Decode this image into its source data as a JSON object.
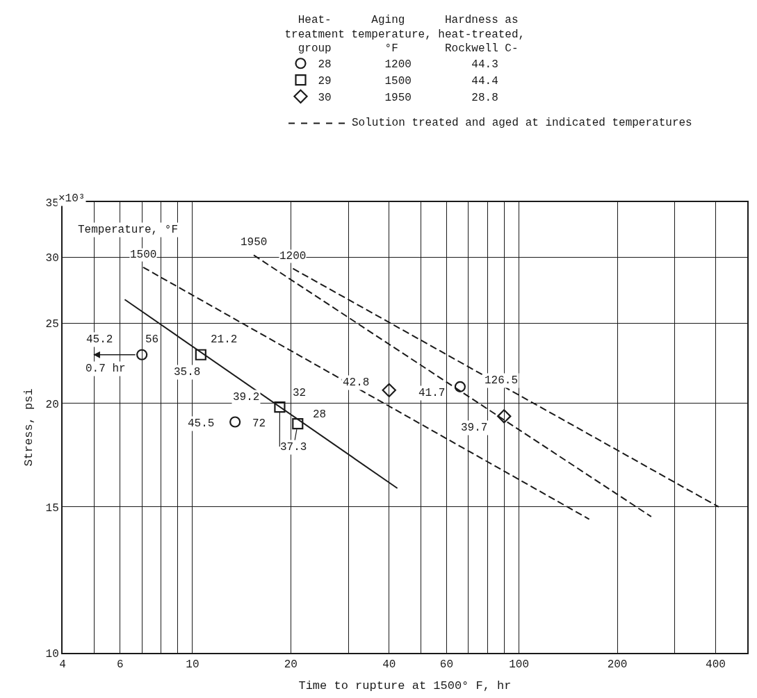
{
  "chart_data": {
    "type": "scatter",
    "xlabel": "Time to rupture at 1500° F, hr",
    "ylabel": "Stress, psi",
    "legend_title": "  Heat-      Aging      Hardness as\ntreatment temperature, heat-treated,\n  group        °F       Rockwell C-",
    "log": "xy",
    "grid": true,
    "legend": "top",
    "xlim": [
      4,
      500
    ],
    "xticks": [
      4,
      {
        "value": 5,
        "label": null
      },
      6,
      {
        "value": 7,
        "label": null
      },
      {
        "value": 8,
        "label": null
      },
      {
        "value": 9,
        "label": null
      },
      10,
      20,
      {
        "value": 30,
        "label": null
      },
      40,
      {
        "value": 50,
        "label": null
      },
      60,
      {
        "value": 70,
        "label": null
      },
      {
        "value": 80,
        "label": null
      },
      {
        "value": 90,
        "label": null
      },
      100,
      200,
      {
        "value": 300,
        "label": null
      },
      400
    ],
    "ylim": [
      10,
      35
    ],
    "yticks": [
      10,
      15,
      20,
      25,
      30,
      35
    ],
    "series": [
      {
        "name": "28        1200         44.3",
        "type": "scatter",
        "marker": "circle",
        "color": "#1a1a1a",
        "x": [
          7.0,
          13.5,
          66
        ],
        "values": [
          22.9,
          19.0,
          20.95
        ]
      },
      {
        "name": "29        1500         44.4",
        "type": "scatter",
        "marker": "square",
        "color": "#1a1a1a",
        "x": [
          10.6,
          18.5,
          21.0
        ],
        "values": [
          22.9,
          19.8,
          18.9
        ]
      },
      {
        "name": "30        1950         28.8",
        "type": "scatter",
        "marker": "diamond",
        "color": "#1a1a1a",
        "x": [
          40,
          90
        ],
        "values": [
          20.75,
          19.3
        ]
      },
      {
        "type": "line",
        "line_style": "solid",
        "color": "#1a1a1a",
        "x": [
          6.2,
          42.4
        ],
        "values": [
          26.7,
          15.8
        ]
      },
      {
        "name": "1500",
        "type": "line",
        "line_style": "dashed",
        "color": "#1a1a1a",
        "x": [
          7.06,
          164
        ],
        "values": [
          29.2,
          14.5
        ]
      },
      {
        "name": "1950",
        "type": "line",
        "line_style": "dashed",
        "color": "#1a1a1a",
        "x": [
          15.4,
          254
        ],
        "values": [
          30.2,
          14.6
        ]
      },
      {
        "name": "1200",
        "type": "line",
        "line_style": "dashed",
        "color": "#1a1a1a",
        "x": [
          20.3,
          409
        ],
        "values": [
          29.1,
          15.0
        ]
      }
    ],
    "annotations": [
      "Temperature, °F",
      "0.7 hr",
      "×10³",
      {
        "text": "45.2",
        "x": 5.19,
        "y": 23.9
      },
      {
        "text": "56",
        "x": 7.52,
        "y": 23.9
      },
      {
        "text": "21.2",
        "x": 12.5,
        "y": 23.9
      },
      {
        "text": "35.8",
        "x": 9.6,
        "y": 21.8
      },
      {
        "text": "39.2",
        "x": 14.6,
        "y": 20.35
      },
      {
        "text": "32",
        "x": 21.2,
        "y": 20.6
      },
      {
        "text": "28",
        "x": 24.5,
        "y": 19.4
      },
      {
        "text": "37.3",
        "x": 21.0,
        "y": 18.9
      },
      {
        "text": "45.5",
        "x": 10.6,
        "y": 18.9
      },
      {
        "text": "72",
        "x": 16.0,
        "y": 18.9
      },
      {
        "text": "42.8",
        "x": 31.7,
        "y": 21.2
      },
      {
        "text": "41.7",
        "x": 53.9,
        "y": 20.6
      },
      {
        "text": "126.5",
        "x": 88.1,
        "y": 21.3
      },
      {
        "text": "39.7",
        "x": 73.0,
        "y": 18.7
      },
      "Solution treated and aged at indicated temperatures"
    ]
  }
}
